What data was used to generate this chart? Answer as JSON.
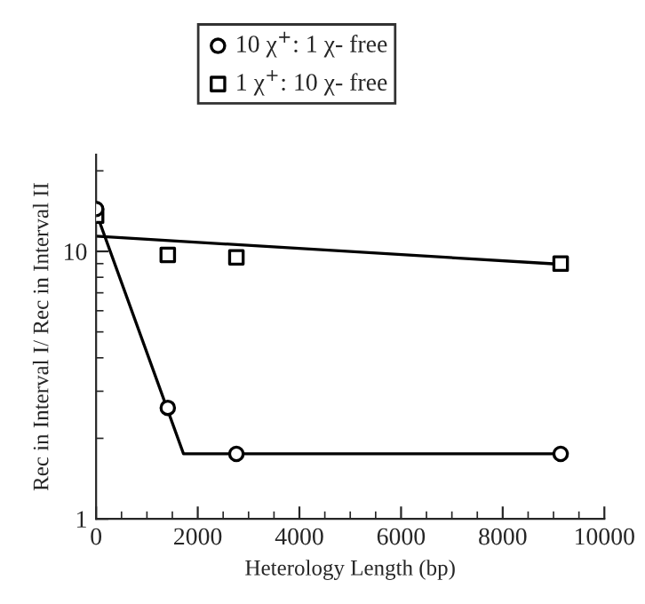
{
  "chart_data": {
    "type": "scatter",
    "xlabel": "Heterology Length (bp)",
    "ylabel": "Rec in Interval I/ Rec in Interval II",
    "series": [
      {
        "name": "10 χ$^{+}$: 1 χ- free",
        "marker": "circle",
        "color": "#000000",
        "x": [
          0,
          1410,
          2760,
          9140
        ],
        "values": [
          14.4,
          2.6,
          1.75,
          1.75
        ]
      },
      {
        "name": "1 χ$^{+}$: 10 χ- free",
        "marker": "square",
        "color": "#000000",
        "x": [
          0,
          1410,
          2760,
          9140
        ],
        "values": [
          13.6,
          9.7,
          9.5,
          9.0
        ]
      },
      {
        "type": "line",
        "marker": "none",
        "color": "#000000",
        "x": [
          0,
          1720,
          9140
        ],
        "values": [
          14.0,
          1.75,
          1.75
        ]
      },
      {
        "type": "line",
        "marker": "none",
        "color": "#000000",
        "x": [
          0,
          9140
        ],
        "values": [
          11.4,
          8.95
        ]
      }
    ],
    "log": "y",
    "xlim": [
      0,
      10000
    ],
    "xticks": [
      0,
      2000,
      4000,
      6000,
      8000,
      10000
    ],
    "ylim": [
      1,
      23
    ],
    "yticks": [
      1,
      10
    ],
    "grid": false,
    "legend": "top"
  }
}
